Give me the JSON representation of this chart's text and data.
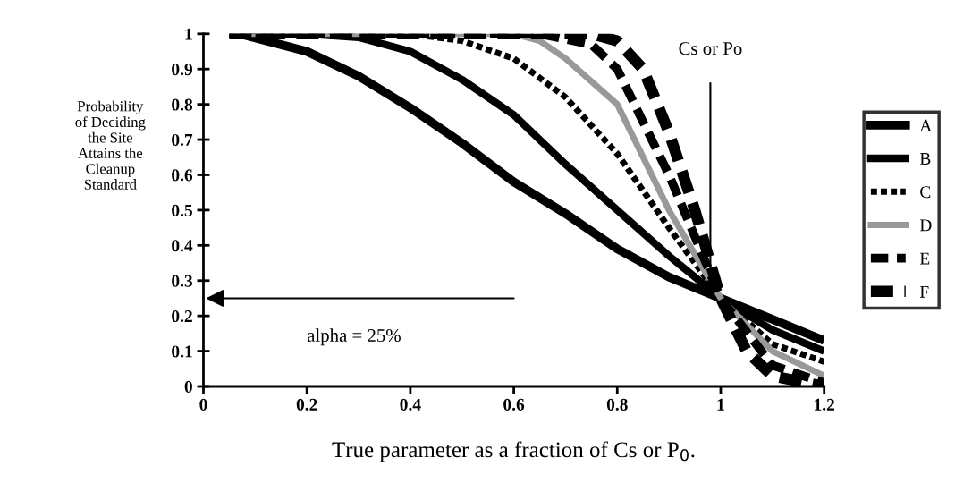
{
  "chart_data": {
    "type": "line",
    "xlabel": "True parameter as a fraction of Cs or P$_{0}$.",
    "ylabel": "Probability\nof Deciding\nthe Site\nAttains the\nCleanup\nStandard",
    "xlim": [
      0,
      1.2
    ],
    "xticks": [
      0,
      0.2,
      0.4,
      0.6,
      0.8,
      1,
      1.2
    ],
    "ylim": [
      0,
      1
    ],
    "yticks": [
      0,
      0.1,
      0.2,
      0.3,
      0.4,
      0.5,
      0.6,
      0.7,
      0.8,
      0.9,
      1
    ],
    "grid": false,
    "legend": "right",
    "marker": "none",
    "annotations": [
      "Cs or Po",
      "alpha = 25%"
    ],
    "series": [
      {
        "name": "A",
        "color": "#000000",
        "line_style": "solid",
        "x": [
          0.07,
          0.2,
          0.3,
          0.4,
          0.5,
          0.6,
          0.7,
          0.8,
          0.9,
          1.0,
          1.1,
          1.2
        ],
        "values": [
          1,
          0.95,
          0.88,
          0.79,
          0.69,
          0.58,
          0.49,
          0.39,
          0.31,
          0.25,
          0.19,
          0.13
        ]
      },
      {
        "name": "B",
        "color": "#000000",
        "line_style": "solid",
        "x": [
          0.05,
          0.2,
          0.3,
          0.4,
          0.5,
          0.6,
          0.7,
          0.8,
          0.9,
          1.0,
          1.1,
          1.2
        ],
        "values": [
          1,
          1,
          0.99,
          0.95,
          0.87,
          0.77,
          0.63,
          0.5,
          0.37,
          0.25,
          0.16,
          0.1
        ]
      },
      {
        "name": "C",
        "color": "#000000",
        "line_style": "dotted",
        "x": [
          0.05,
          0.4,
          0.5,
          0.6,
          0.7,
          0.8,
          0.9,
          1.0,
          1.1,
          1.2
        ],
        "values": [
          1,
          1,
          0.98,
          0.93,
          0.82,
          0.66,
          0.45,
          0.25,
          0.12,
          0.07
        ]
      },
      {
        "name": "D",
        "color": "#999999",
        "line_style": "solid",
        "x": [
          0.05,
          0.6,
          0.65,
          0.7,
          0.8,
          0.9,
          1.0,
          1.1,
          1.2
        ],
        "values": [
          1,
          1,
          0.98,
          0.93,
          0.8,
          0.5,
          0.25,
          0.1,
          0.03
        ]
      },
      {
        "name": "E",
        "color": "#000000",
        "line_style": "dashed",
        "x": [
          0.05,
          0.65,
          0.75,
          0.8,
          0.9,
          1.0,
          1.1,
          1.2
        ],
        "values": [
          1,
          1,
          0.97,
          0.9,
          0.6,
          0.25,
          0.06,
          0.01
        ]
      },
      {
        "name": "F",
        "color": "#000000",
        "line_style": "dashed",
        "x": [
          0.05,
          0.75,
          0.8,
          0.85,
          0.9,
          0.95,
          1.0,
          1.05,
          1.1,
          1.2
        ],
        "values": [
          1,
          1,
          0.98,
          0.9,
          0.72,
          0.5,
          0.25,
          0.1,
          0.03,
          0
        ]
      }
    ]
  }
}
